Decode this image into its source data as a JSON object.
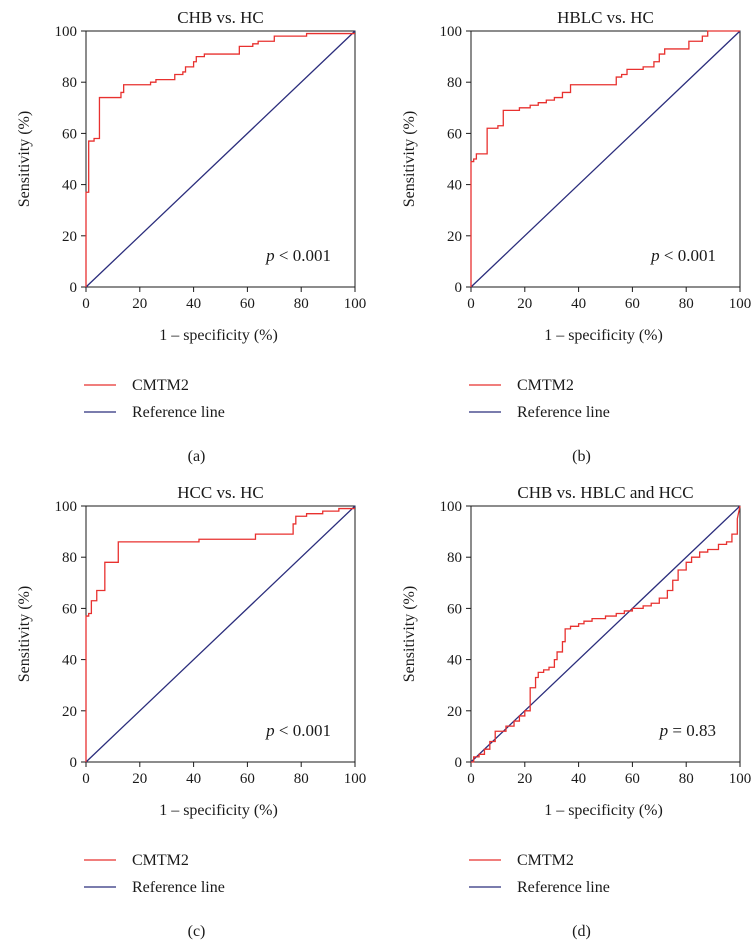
{
  "chart_data": [
    {
      "type": "line",
      "panel_label": "(a)",
      "title": "CHB vs. HC",
      "xlabel": "1 – specificity (%)",
      "ylabel": "Sensitivity (%)",
      "xlim": [
        0,
        100
      ],
      "ylim": [
        0,
        100
      ],
      "xticks": [
        "0",
        "20",
        "40",
        "60",
        "80",
        "100"
      ],
      "yticks": [
        "0",
        "20",
        "40",
        "60",
        "80",
        "100"
      ],
      "grid": false,
      "legend_position": "below",
      "annotation": {
        "p_symbol": "p",
        "p_text": " < 0.001"
      },
      "series": [
        {
          "name": "CMTM2",
          "color": "#e8312f",
          "x": [
            0,
            0,
            1,
            1,
            2,
            2,
            3,
            3,
            4,
            4,
            5,
            5,
            10,
            10,
            13,
            13,
            14,
            14,
            24,
            24,
            26,
            26,
            28,
            28,
            33,
            33,
            36,
            36,
            37,
            37,
            40,
            40,
            41,
            41,
            44,
            44,
            57,
            57,
            61,
            61,
            62,
            62,
            64,
            64,
            70,
            70,
            82,
            82,
            100
          ],
          "y": [
            0,
            37,
            37,
            57,
            57,
            57,
            57,
            58,
            58,
            58,
            58,
            74,
            74,
            74,
            74,
            76,
            76,
            79,
            79,
            80,
            80,
            81,
            81,
            81,
            81,
            83,
            83,
            84,
            84,
            86,
            86,
            88,
            88,
            90,
            90,
            91,
            91,
            94,
            94,
            94,
            94,
            95,
            95,
            96,
            96,
            98,
            98,
            99,
            99
          ]
        },
        {
          "name": "Reference line",
          "color": "#2b2d7c",
          "x": [
            0,
            100
          ],
          "y": [
            0,
            100
          ]
        }
      ]
    },
    {
      "type": "line",
      "panel_label": "(b)",
      "title": "HBLC vs. HC",
      "xlabel": "1 – specificity (%)",
      "ylabel": "Sensitivity (%)",
      "xlim": [
        0,
        100
      ],
      "ylim": [
        0,
        100
      ],
      "xticks": [
        "0",
        "20",
        "40",
        "60",
        "80",
        "100"
      ],
      "yticks": [
        "0",
        "20",
        "40",
        "60",
        "80",
        "100"
      ],
      "grid": false,
      "legend_position": "below",
      "annotation": {
        "p_symbol": "p",
        "p_text": " < 0.001"
      },
      "series": [
        {
          "name": "CMTM2",
          "color": "#e8312f",
          "x": [
            0,
            0,
            1,
            1,
            2,
            2,
            6,
            6,
            10,
            10,
            12,
            12,
            18,
            18,
            22,
            22,
            25,
            25,
            28,
            28,
            31,
            31,
            34,
            34,
            37,
            37,
            54,
            54,
            56,
            56,
            58,
            58,
            64,
            64,
            68,
            68,
            70,
            70,
            72,
            72,
            81,
            81,
            86,
            86,
            88,
            88,
            100
          ],
          "y": [
            0,
            49,
            49,
            50,
            50,
            52,
            52,
            62,
            62,
            63,
            63,
            69,
            69,
            70,
            70,
            71,
            71,
            72,
            72,
            73,
            73,
            74,
            74,
            76,
            76,
            79,
            79,
            82,
            82,
            83,
            83,
            85,
            85,
            86,
            86,
            88,
            88,
            91,
            91,
            93,
            93,
            96,
            96,
            98,
            98,
            100,
            100
          ]
        },
        {
          "name": "Reference line",
          "color": "#2b2d7c",
          "x": [
            0,
            100
          ],
          "y": [
            0,
            100
          ]
        }
      ]
    },
    {
      "type": "line",
      "panel_label": "(c)",
      "title": "HCC vs. HC",
      "xlabel": "1 – specificity (%)",
      "ylabel": "Sensitivity (%)",
      "xlim": [
        0,
        100
      ],
      "ylim": [
        0,
        100
      ],
      "xticks": [
        "0",
        "20",
        "40",
        "60",
        "80",
        "100"
      ],
      "yticks": [
        "0",
        "20",
        "40",
        "60",
        "80",
        "100"
      ],
      "grid": false,
      "legend_position": "below",
      "annotation": {
        "p_symbol": "p",
        "p_text": " < 0.001"
      },
      "series": [
        {
          "name": "CMTM2",
          "color": "#e8312f",
          "x": [
            0,
            0,
            1,
            1,
            2,
            2,
            4,
            4,
            7,
            7,
            12,
            12,
            42,
            42,
            63,
            63,
            77,
            77,
            78,
            78,
            82,
            82,
            88,
            88,
            94,
            94,
            100
          ],
          "y": [
            0,
            57,
            57,
            58,
            58,
            63,
            63,
            67,
            67,
            78,
            78,
            86,
            86,
            87,
            87,
            89,
            89,
            93,
            93,
            96,
            96,
            97,
            97,
            98,
            98,
            99,
            99
          ]
        },
        {
          "name": "Reference line",
          "color": "#2b2d7c",
          "x": [
            0,
            100
          ],
          "y": [
            0,
            100
          ]
        }
      ]
    },
    {
      "type": "line",
      "panel_label": "(d)",
      "title": "CHB vs. HBLC and HCC",
      "xlabel": "1 – specificity (%)",
      "ylabel": "Sensitivity (%)",
      "xlim": [
        0,
        100
      ],
      "ylim": [
        0,
        100
      ],
      "xticks": [
        "0",
        "20",
        "40",
        "60",
        "80",
        "100"
      ],
      "yticks": [
        "0",
        "20",
        "40",
        "60",
        "80",
        "100"
      ],
      "grid": false,
      "legend_position": "below",
      "annotation": {
        "p_symbol": "p",
        "p_text": " = 0.83"
      },
      "series": [
        {
          "name": "CMTM2",
          "color": "#e8312f",
          "x": [
            0,
            1,
            1,
            3,
            3,
            5,
            5,
            7,
            7,
            9,
            9,
            13,
            13,
            16,
            16,
            18,
            18,
            20,
            20,
            22,
            22,
            24,
            24,
            25,
            25,
            27,
            27,
            29,
            29,
            31,
            31,
            32,
            32,
            34,
            34,
            35,
            35,
            37,
            37,
            40,
            40,
            42,
            42,
            45,
            45,
            50,
            50,
            54,
            54,
            57,
            57,
            60,
            60,
            64,
            64,
            67,
            67,
            70,
            70,
            73,
            73,
            75,
            75,
            77,
            77,
            80,
            80,
            82,
            82,
            85,
            85,
            88,
            88,
            92,
            92,
            95,
            95,
            97,
            97,
            99,
            99,
            100
          ],
          "y": [
            0,
            0,
            2,
            2,
            3,
            3,
            5,
            5,
            8,
            8,
            12,
            12,
            14,
            14,
            16,
            16,
            18,
            18,
            20,
            20,
            29,
            29,
            33,
            33,
            35,
            35,
            36,
            36,
            37,
            37,
            40,
            40,
            43,
            43,
            47,
            47,
            52,
            52,
            53,
            53,
            54,
            54,
            55,
            55,
            56,
            56,
            57,
            57,
            58,
            58,
            59,
            59,
            60,
            60,
            61,
            61,
            62,
            62,
            64,
            64,
            67,
            67,
            71,
            71,
            75,
            75,
            78,
            78,
            80,
            80,
            82,
            82,
            83,
            83,
            85,
            85,
            86,
            86,
            89,
            89,
            95,
            100
          ]
        },
        {
          "name": "Reference line",
          "color": "#2b2d7c",
          "x": [
            0,
            100
          ],
          "y": [
            0,
            100
          ]
        }
      ]
    }
  ]
}
